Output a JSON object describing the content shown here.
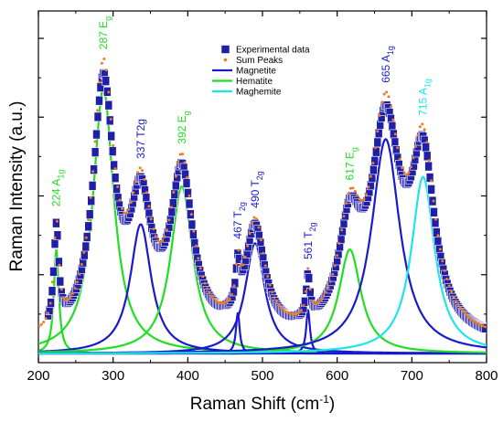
{
  "chart_data": {
    "type": "line",
    "xlabel": "Raman Shift (cm",
    "xlabel_sup": "-1",
    "xlabel_close": ")",
    "ylabel": "Raman Intensity (a.u.)",
    "xlim": [
      200,
      800
    ],
    "ylim": [
      0,
      1.0
    ],
    "x_ticks": [
      200,
      300,
      400,
      500,
      600,
      700,
      800
    ],
    "x_tick_labels": [
      "200",
      "300",
      "400",
      "500",
      "600",
      "700",
      "800"
    ],
    "y_ticks_major": [
      0.25,
      0.5,
      0.75,
      1.0
    ],
    "y_tick_labels": [],
    "grid": false,
    "legend_position": "top-center",
    "legend": [
      {
        "label": "Experimental data",
        "style": "square",
        "color": "#1f1fa8"
      },
      {
        "label": "Sum Peaks",
        "style": "dot",
        "color": "#f07c1c"
      },
      {
        "label": "Magnetite",
        "style": "line",
        "color": "#1a1acc"
      },
      {
        "label": "Hematite",
        "style": "line",
        "color": "#22dd22"
      },
      {
        "label": "Maghemite",
        "style": "line",
        "color": "#1ee6e6"
      }
    ],
    "colors": {
      "experimental": "#1f1fa8",
      "sum": "#f07c1c",
      "magnetite": "#1a1acc",
      "hematite": "#22dd22",
      "maghemite": "#1ee6e6"
    },
    "peaks": [
      {
        "phase": "hematite",
        "center": 224,
        "height": 0.33,
        "width": 4
      },
      {
        "phase": "hematite",
        "center": 287,
        "height": 0.84,
        "width": 17
      },
      {
        "phase": "magnetite",
        "center": 337,
        "height": 0.41,
        "width": 17
      },
      {
        "phase": "hematite",
        "center": 392,
        "height": 0.53,
        "width": 18
      },
      {
        "phase": "magnetite",
        "center": 467,
        "height": 0.13,
        "width": 3
      },
      {
        "phase": "magnetite",
        "center": 490,
        "height": 0.35,
        "width": 16
      },
      {
        "phase": "magnetite",
        "center": 561,
        "height": 0.14,
        "width": 3
      },
      {
        "phase": "hematite",
        "center": 617,
        "height": 0.33,
        "width": 18
      },
      {
        "phase": "magnetite",
        "center": 665,
        "height": 0.68,
        "width": 23
      },
      {
        "phase": "maghemite",
        "center": 715,
        "height": 0.56,
        "width": 19
      }
    ],
    "annotations": [
      {
        "x": 224,
        "main": "224 A",
        "sub": "1g",
        "phase": "hematite"
      },
      {
        "x": 287,
        "main": "287 E",
        "sub": "g",
        "phase": "hematite"
      },
      {
        "x": 337,
        "main": "337 T2g",
        "sub": "",
        "phase": "magnetite"
      },
      {
        "x": 392,
        "main": "392 E",
        "sub": "g",
        "phase": "hematite"
      },
      {
        "x": 467,
        "main": "467 T",
        "sub": "2g",
        "phase": "magnetite"
      },
      {
        "x": 490,
        "main": "490 T",
        "sub": "2g",
        "phase": "magnetite"
      },
      {
        "x": 561,
        "main": "561 T",
        "sub": "2g",
        "phase": "magnetite"
      },
      {
        "x": 617,
        "main": "617 E",
        "sub": "g",
        "phase": "hematite"
      },
      {
        "x": 665,
        "main": "665 A",
        "sub": "1g",
        "phase": "magnetite"
      },
      {
        "x": 715,
        "main": "715 A",
        "sub": "1g",
        "phase": "maghemite"
      }
    ]
  }
}
